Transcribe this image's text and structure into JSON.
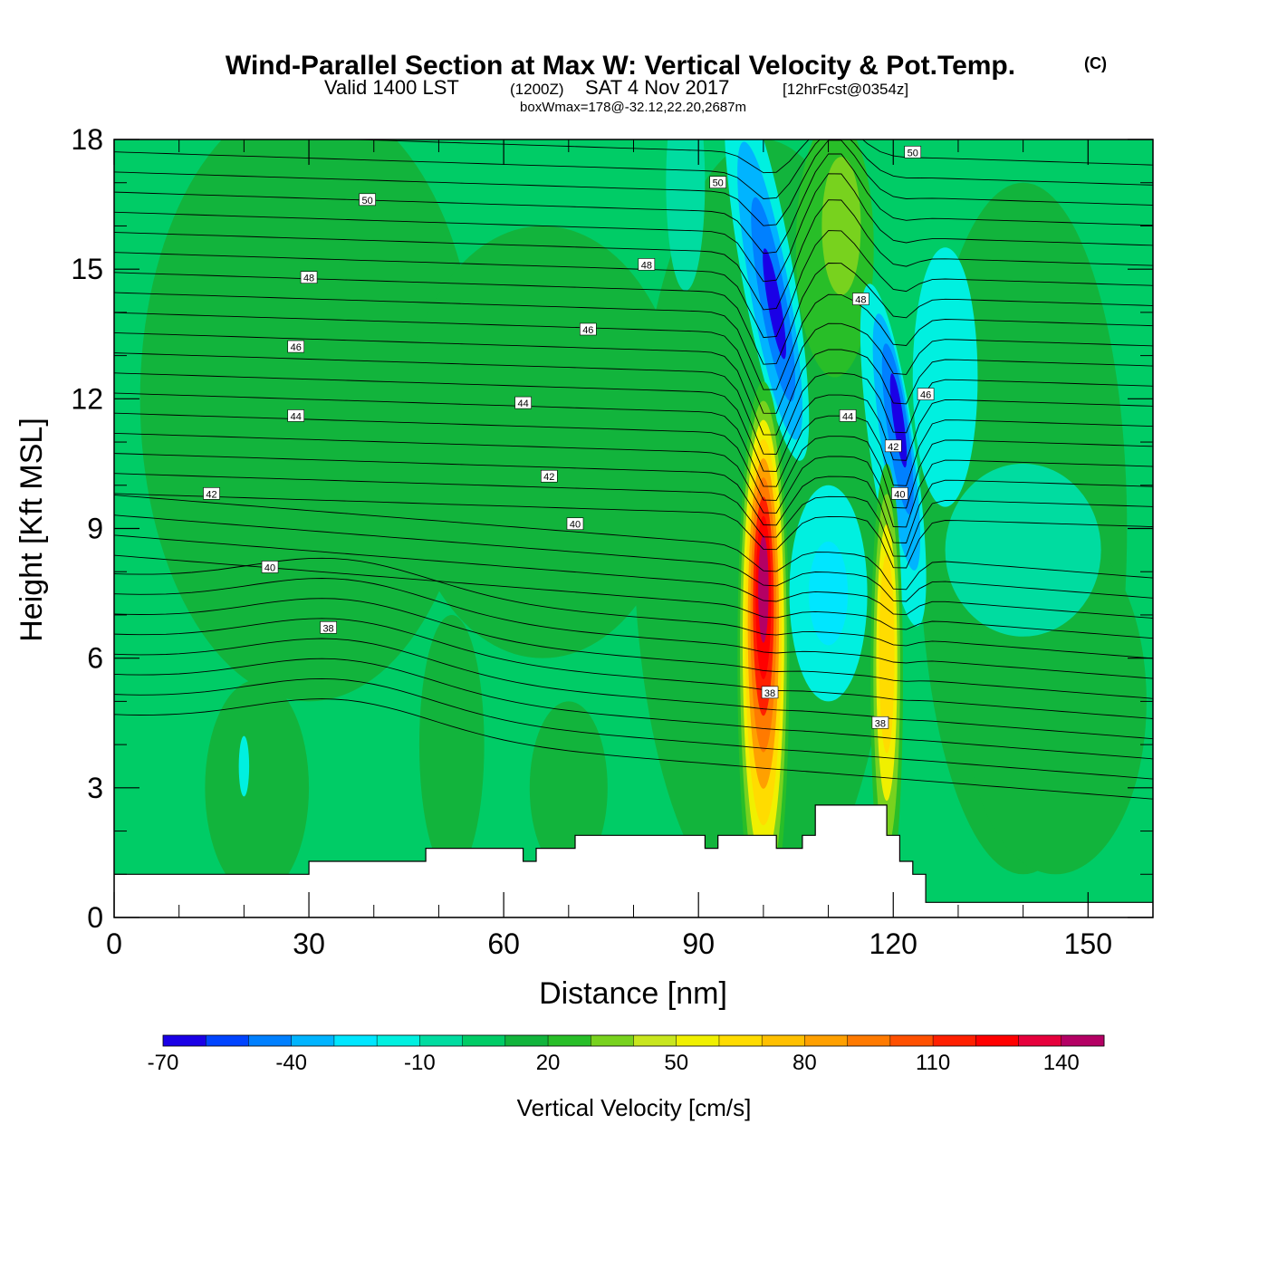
{
  "title": {
    "main": "Wind-Parallel Section at Max W: Vertical Velocity & Pot.Temp.",
    "copyright": "(C)",
    "valid_prefix": "Valid 1400 LST",
    "valid_z": "(1200Z)",
    "valid_date": "SAT 4 Nov 2017",
    "forecast": "[12hrFcst@0354z]",
    "boxwmax": "boxWmax=178@-32.12,22.20,2687m"
  },
  "chart_data": {
    "type": "heatmap",
    "xlabel": "Distance [nm]",
    "ylabel": "Height [Kft MSL]",
    "xlim": [
      0,
      160
    ],
    "ylim": [
      0,
      18
    ],
    "x_ticks": [
      "0",
      "30",
      "60",
      "90",
      "120",
      "150"
    ],
    "y_ticks": [
      "0",
      "3",
      "6",
      "9",
      "12",
      "15",
      "18"
    ],
    "colorbar": {
      "title": "Vertical Velocity [cm/s]",
      "labels": [
        "-70",
        "-40",
        "-10",
        "20",
        "50",
        "80",
        "110",
        "140"
      ],
      "levels": [
        -70,
        -60,
        -50,
        -40,
        -30,
        -20,
        -10,
        0,
        10,
        20,
        30,
        40,
        50,
        60,
        70,
        80,
        90,
        100,
        110,
        120,
        130,
        140,
        150
      ],
      "colors": [
        "#1a00e6",
        "#0044ff",
        "#0080ff",
        "#00b4ff",
        "#00e6ff",
        "#00f0e0",
        "#00dca0",
        "#00cc66",
        "#12b43c",
        "#28be28",
        "#78d21e",
        "#c8e61e",
        "#f0f000",
        "#ffdc00",
        "#ffc000",
        "#ffa000",
        "#ff7a00",
        "#ff5000",
        "#ff2000",
        "#ff0000",
        "#e6003c",
        "#b40064"
      ]
    },
    "velocity_features": [
      {
        "name": "updraft-1",
        "x": 100,
        "height": 6,
        "peak": 140
      },
      {
        "name": "updraft-2",
        "x": 119,
        "height": 5.5,
        "peak": 60
      },
      {
        "name": "downdraft-1",
        "x": 101.5,
        "height": 14.5,
        "peak": -70
      },
      {
        "name": "downdraft-2",
        "x": 120.5,
        "height": 11.5,
        "peak": -70
      }
    ],
    "theta_contours": {
      "unit_hint": "Pot.Temp.",
      "levels": [
        38,
        40,
        42,
        44,
        46,
        48,
        50
      ],
      "labels": [
        {
          "text": "50",
          "x": 39,
          "y": 16.6
        },
        {
          "text": "48",
          "x": 30,
          "y": 14.8
        },
        {
          "text": "46",
          "x": 28,
          "y": 13.2
        },
        {
          "text": "44",
          "x": 28,
          "y": 11.6
        },
        {
          "text": "42",
          "x": 15,
          "y": 9.8
        },
        {
          "text": "40",
          "x": 24,
          "y": 8.1
        },
        {
          "text": "38",
          "x": 33,
          "y": 6.7
        },
        {
          "text": "44",
          "x": 63,
          "y": 11.9
        },
        {
          "text": "42",
          "x": 67,
          "y": 10.2
        },
        {
          "text": "40",
          "x": 71,
          "y": 9.1
        },
        {
          "text": "46",
          "x": 73,
          "y": 13.6
        },
        {
          "text": "48",
          "x": 82,
          "y": 15.1
        },
        {
          "text": "50",
          "x": 93,
          "y": 17.0
        },
        {
          "text": "50",
          "x": 123,
          "y": 17.7
        },
        {
          "text": "48",
          "x": 115,
          "y": 14.3
        },
        {
          "text": "46",
          "x": 125,
          "y": 12.1
        },
        {
          "text": "44",
          "x": 113,
          "y": 11.6
        },
        {
          "text": "42",
          "x": 120,
          "y": 10.9
        },
        {
          "text": "40",
          "x": 121,
          "y": 9.8
        },
        {
          "text": "38",
          "x": 101,
          "y": 5.2
        },
        {
          "text": "38",
          "x": 118,
          "y": 4.5
        }
      ]
    },
    "terrain": [
      [
        0,
        1.0
      ],
      [
        30,
        1.0
      ],
      [
        30,
        1.3
      ],
      [
        48,
        1.3
      ],
      [
        48,
        1.6
      ],
      [
        63,
        1.6
      ],
      [
        63,
        1.3
      ],
      [
        65,
        1.3
      ],
      [
        65,
        1.6
      ],
      [
        71,
        1.6
      ],
      [
        71,
        1.9
      ],
      [
        91,
        1.9
      ],
      [
        91,
        1.6
      ],
      [
        93,
        1.6
      ],
      [
        93,
        1.9
      ],
      [
        102,
        1.9
      ],
      [
        102,
        1.6
      ],
      [
        106,
        1.6
      ],
      [
        106,
        1.9
      ],
      [
        108,
        1.9
      ],
      [
        108,
        2.6
      ],
      [
        119,
        2.6
      ],
      [
        119,
        1.9
      ],
      [
        121,
        1.9
      ],
      [
        121,
        1.3
      ],
      [
        123,
        1.3
      ],
      [
        123,
        1.0
      ],
      [
        125,
        1.0
      ],
      [
        125,
        0.35
      ],
      [
        160,
        0.35
      ]
    ]
  }
}
